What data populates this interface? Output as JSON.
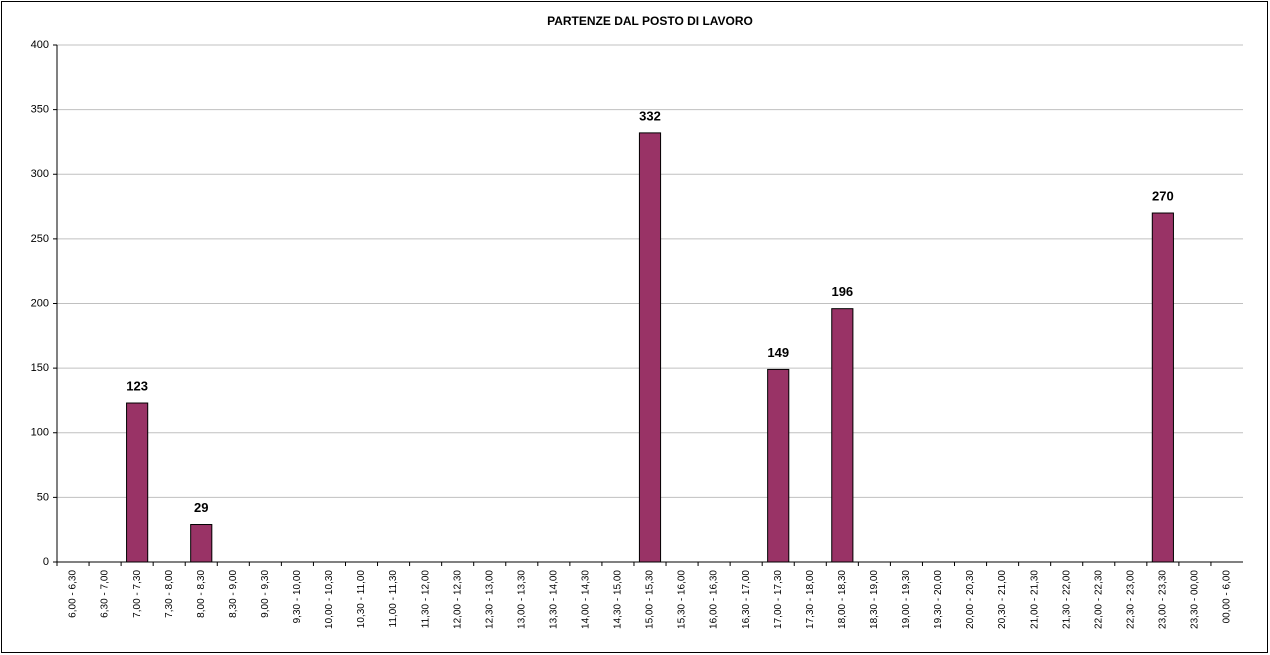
{
  "chart_data": {
    "type": "bar",
    "title": "PARTENZE DAL POSTO DI LAVORO",
    "categories": [
      "6,00 - 6,30",
      "6,30 - 7,00",
      "7,00 - 7,30",
      "7,30 - 8,00",
      "8,00 - 8,30",
      "8,30 - 9,00",
      "9,00 - 9,30",
      "9,30 - 10,00",
      "10,00 - 10,30",
      "10,30 - 11,00",
      "11,00 - 11,30",
      "11,30 - 12,00",
      "12,00 - 12,30",
      "12,30 - 13,00",
      "13,00 - 13,30",
      "13,30 - 14,00",
      "14,00 - 14,30",
      "14,30 - 15,00",
      "15,00 - 15,30",
      "15,30 - 16,00",
      "16,00 - 16,30",
      "16,30 - 17,00",
      "17,00 - 17,30",
      "17,30 - 18,00",
      "18,00 - 18,30",
      "18,30 - 19,00",
      "19,00 - 19,30",
      "19,30 - 20,00",
      "20,00 - 20,30",
      "20,30 - 21,00",
      "21,00 - 21,30",
      "21,30 - 22,00",
      "22,00 - 22,30",
      "22,30 - 23,00",
      "23,00 - 23,30",
      "23,30 - 00,00",
      "00,00 - 6,00"
    ],
    "values": [
      0,
      0,
      123,
      0,
      29,
      0,
      0,
      0,
      0,
      0,
      0,
      0,
      0,
      0,
      0,
      0,
      0,
      0,
      332,
      0,
      0,
      0,
      149,
      0,
      196,
      0,
      0,
      0,
      0,
      0,
      0,
      0,
      0,
      0,
      270,
      0,
      0
    ],
    "color": "#993366",
    "ylim": [
      0,
      400
    ],
    "yticks": [
      0,
      50,
      100,
      150,
      200,
      250,
      300,
      350,
      400
    ],
    "grid": true
  }
}
